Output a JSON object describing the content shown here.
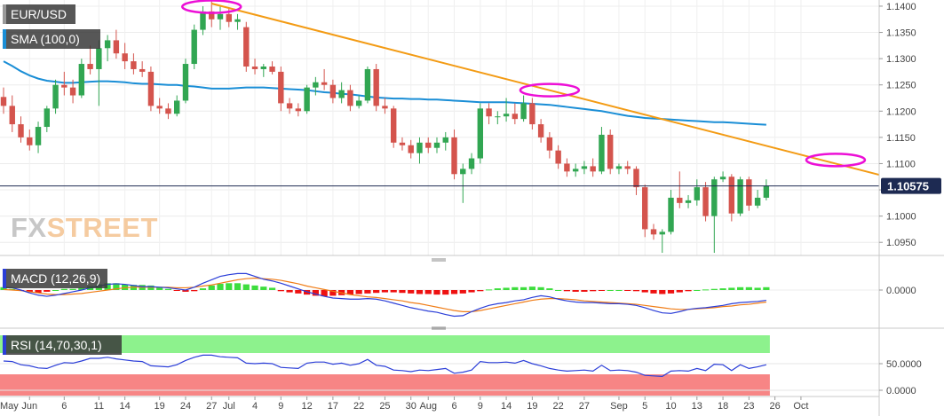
{
  "chart_data": [
    {
      "type": "candlestick",
      "panel": "price",
      "labels": {
        "symbol": "EUR/USD",
        "sma": "SMA (100,0)",
        "current_price": "1.10575",
        "watermark": "FXSTREET"
      },
      "y_ticks": [
        "1.1400",
        "1.1350",
        "1.1300",
        "1.1250",
        "1.1200",
        "1.1150",
        "1.1100",
        "1.1050",
        "1.1000",
        "1.0950"
      ],
      "ylim": [
        1.0925,
        1.1405
      ],
      "current_price_value": 1.10575,
      "candles": [
        [
          1.1227,
          1.1245,
          1.1195,
          1.121
        ],
        [
          1.121,
          1.123,
          1.116,
          1.1175
        ],
        [
          1.1175,
          1.119,
          1.114,
          1.115
        ],
        [
          1.115,
          1.1165,
          1.1125,
          1.1135
        ],
        [
          1.1135,
          1.118,
          1.112,
          1.117
        ],
        [
          1.117,
          1.121,
          1.116,
          1.1205
        ],
        [
          1.1205,
          1.126,
          1.1195,
          1.125
        ],
        [
          1.125,
          1.1275,
          1.123,
          1.1245
        ],
        [
          1.1245,
          1.126,
          1.1215,
          1.123
        ],
        [
          1.123,
          1.13,
          1.1225,
          1.129
        ],
        [
          1.129,
          1.1325,
          1.127,
          1.128
        ],
        [
          1.128,
          1.1335,
          1.121,
          1.132
        ],
        [
          1.132,
          1.1345,
          1.1295,
          1.1335
        ],
        [
          1.1335,
          1.1355,
          1.13,
          1.131
        ],
        [
          1.131,
          1.133,
          1.128,
          1.1295
        ],
        [
          1.1295,
          1.131,
          1.127,
          1.128
        ],
        [
          1.128,
          1.1295,
          1.1265,
          1.1275
        ],
        [
          1.1275,
          1.1285,
          1.12,
          1.121
        ],
        [
          1.121,
          1.1225,
          1.1195,
          1.1205
        ],
        [
          1.1205,
          1.1215,
          1.1185,
          1.1195
        ],
        [
          1.1195,
          1.123,
          1.119,
          1.122
        ],
        [
          1.122,
          1.13,
          1.1215,
          1.129
        ],
        [
          1.129,
          1.1365,
          1.128,
          1.1355
        ],
        [
          1.1355,
          1.14,
          1.1345,
          1.139
        ],
        [
          1.139,
          1.141,
          1.136,
          1.1375
        ],
        [
          1.1375,
          1.14,
          1.1355,
          1.1385
        ],
        [
          1.1385,
          1.1395,
          1.136,
          1.137
        ],
        [
          1.137,
          1.1385,
          1.1355,
          1.1375
        ],
        [
          1.136,
          1.137,
          1.1275,
          1.1285
        ],
        [
          1.1285,
          1.13,
          1.127,
          1.128
        ],
        [
          1.128,
          1.129,
          1.1265,
          1.1285
        ],
        [
          1.1285,
          1.1295,
          1.127,
          1.1275
        ],
        [
          1.1275,
          1.1285,
          1.12,
          1.1215
        ],
        [
          1.1215,
          1.1225,
          1.1195,
          1.1205
        ],
        [
          1.1205,
          1.1215,
          1.119,
          1.12
        ],
        [
          1.12,
          1.125,
          1.1195,
          1.1245
        ],
        [
          1.1245,
          1.1265,
          1.123,
          1.1255
        ],
        [
          1.1255,
          1.128,
          1.124,
          1.125
        ],
        [
          1.125,
          1.126,
          1.1215,
          1.1225
        ],
        [
          1.1225,
          1.1255,
          1.1215,
          1.124
        ],
        [
          1.124,
          1.125,
          1.12,
          1.121
        ],
        [
          1.121,
          1.123,
          1.1205,
          1.122
        ],
        [
          1.122,
          1.1285,
          1.1215,
          1.128
        ],
        [
          1.128,
          1.129,
          1.12,
          1.121
        ],
        [
          1.121,
          1.1225,
          1.1195,
          1.1205
        ],
        [
          1.1205,
          1.121,
          1.113,
          1.114
        ],
        [
          1.114,
          1.115,
          1.1125,
          1.1135
        ],
        [
          1.1135,
          1.1145,
          1.111,
          1.112
        ],
        [
          1.112,
          1.115,
          1.11,
          1.114
        ],
        [
          1.114,
          1.115,
          1.112,
          1.113
        ],
        [
          1.113,
          1.115,
          1.112,
          1.114
        ],
        [
          1.114,
          1.116,
          1.1125,
          1.115
        ],
        [
          1.115,
          1.1165,
          1.107,
          1.108
        ],
        [
          1.108,
          1.11,
          1.1025,
          1.109
        ],
        [
          1.109,
          1.112,
          1.108,
          1.111
        ],
        [
          1.111,
          1.1215,
          1.11,
          1.1205
        ],
        [
          1.1205,
          1.1215,
          1.1175,
          1.119
        ],
        [
          1.119,
          1.12,
          1.1175,
          1.119
        ],
        [
          1.119,
          1.1225,
          1.118,
          1.1195
        ],
        [
          1.1195,
          1.1215,
          1.1175,
          1.1185
        ],
        [
          1.1185,
          1.123,
          1.118,
          1.1215
        ],
        [
          1.1215,
          1.1225,
          1.1165,
          1.1175
        ],
        [
          1.1175,
          1.1185,
          1.114,
          1.115
        ],
        [
          1.115,
          1.116,
          1.111,
          1.1125
        ],
        [
          1.1125,
          1.1135,
          1.109,
          1.11
        ],
        [
          1.11,
          1.111,
          1.1075,
          1.1085
        ],
        [
          1.1085,
          1.11,
          1.1075,
          1.109
        ],
        [
          1.109,
          1.1105,
          1.108,
          1.1095
        ],
        [
          1.1095,
          1.111,
          1.1075,
          1.1085
        ],
        [
          1.1085,
          1.117,
          1.108,
          1.1155
        ],
        [
          1.1155,
          1.1165,
          1.108,
          1.109
        ],
        [
          1.109,
          1.11,
          1.108,
          1.1095
        ],
        [
          1.1095,
          1.1105,
          1.108,
          1.109
        ],
        [
          1.109,
          1.1095,
          1.104,
          1.1055
        ],
        [
          1.1055,
          1.106,
          1.096,
          1.0975
        ],
        [
          1.0975,
          1.0985,
          1.0955,
          1.0965
        ],
        [
          1.0965,
          1.0975,
          1.093,
          1.097
        ],
        [
          1.097,
          1.105,
          1.0965,
          1.1035
        ],
        [
          1.1035,
          1.1085,
          1.1015,
          1.1025
        ],
        [
          1.1025,
          1.104,
          1.1015,
          1.103
        ],
        [
          1.103,
          1.107,
          1.102,
          1.1055
        ],
        [
          1.1055,
          1.1065,
          1.099,
          1.1
        ],
        [
          1.1,
          1.1075,
          1.093,
          1.107
        ],
        [
          1.107,
          1.1085,
          1.1065,
          1.1075
        ],
        [
          1.1075,
          1.108,
          1.099,
          1.1005
        ],
        [
          1.1005,
          1.1075,
          1.1,
          1.107
        ],
        [
          1.107,
          1.1075,
          1.101,
          1.102
        ],
        [
          1.102,
          1.105,
          1.1015,
          1.1035
        ],
        [
          1.1035,
          1.107,
          1.103,
          1.1058
        ]
      ],
      "sma_100": [
        1.1295,
        1.1286,
        1.1276,
        1.1268,
        1.1262,
        1.1258,
        1.1256,
        1.1254,
        1.1254,
        1.1255,
        1.1256,
        1.1257,
        1.1257,
        1.1256,
        1.1255,
        1.1253,
        1.1252,
        1.1252,
        1.1251,
        1.125,
        1.125,
        1.1248,
        1.1247,
        1.1245,
        1.1243,
        1.1243,
        1.1243,
        1.1244,
        1.1245,
        1.1245,
        1.1245,
        1.1244,
        1.1243,
        1.1242,
        1.1241,
        1.124,
        1.1238,
        1.1236,
        1.1235,
        1.1233,
        1.1232,
        1.123,
        1.1228,
        1.1226,
        1.1225,
        1.1224,
        1.1224,
        1.1223,
        1.1223,
        1.1222,
        1.1222,
        1.1221,
        1.122,
        1.1219,
        1.1218,
        1.1217,
        1.1217,
        1.1217,
        1.1217,
        1.1216,
        1.1215,
        1.1214,
        1.1213,
        1.1212,
        1.121,
        1.1208,
        1.1206,
        1.1204,
        1.1202,
        1.12,
        1.1197,
        1.1194,
        1.1191,
        1.1189,
        1.1187,
        1.1186,
        1.1185,
        1.1184,
        1.1183,
        1.1182,
        1.1181,
        1.118,
        1.1179,
        1.1179,
        1.1178,
        1.1177,
        1.1176,
        1.1175,
        1.1174
      ],
      "trendline": {
        "start": {
          "index": 24,
          "price": 1.1405
        },
        "end": {
          "index": 113,
          "price": 1.1028
        }
      },
      "highlights": [
        {
          "index": 24,
          "price": 1.1399
        },
        {
          "index": 63,
          "price": 1.124
        },
        {
          "index": 96,
          "price": 1.1107
        }
      ]
    },
    {
      "type": "macd",
      "panel": "macd",
      "label": "MACD (12,26,9)",
      "y_ticks": [
        "0.0000"
      ],
      "histogram": [
        0.05,
        0.02,
        -0.01,
        -0.04,
        -0.05,
        -0.03,
        0.0,
        0.02,
        0.02,
        0.04,
        0.07,
        0.1,
        0.12,
        0.12,
        0.1,
        0.09,
        0.09,
        0.08,
        0.05,
        0.02,
        -0.01,
        -0.03,
        -0.02,
        0.03,
        0.08,
        0.11,
        0.12,
        0.12,
        0.1,
        0.08,
        0.06,
        0.04,
        -0.02,
        -0.04,
        -0.06,
        -0.08,
        -0.1,
        -0.11,
        -0.1,
        -0.09,
        -0.08,
        -0.07,
        -0.06,
        -0.05,
        -0.04,
        -0.04,
        -0.05,
        -0.06,
        -0.07,
        -0.07,
        -0.08,
        -0.08,
        -0.07,
        -0.06,
        -0.04,
        -0.02,
        0.01,
        0.03,
        0.04,
        0.05,
        0.05,
        0.06,
        0.05,
        0.03,
        0.0,
        -0.02,
        -0.03,
        -0.03,
        -0.02,
        -0.01,
        0.0,
        0.0,
        -0.01,
        -0.02,
        -0.04,
        -0.06,
        -0.07,
        -0.06,
        -0.04,
        -0.02,
        0.0,
        0.01,
        0.02,
        0.03,
        0.04,
        0.05,
        0.05,
        0.04,
        0.05
      ],
      "macd_line": [
        0.05,
        0.04,
        0.0,
        -0.05,
        -0.09,
        -0.11,
        -0.09,
        -0.06,
        -0.03,
        0.0,
        0.04,
        0.07,
        0.1,
        0.11,
        0.1,
        0.08,
        0.06,
        0.06,
        0.05,
        0.04,
        0.02,
        0.0,
        0.05,
        0.12,
        0.18,
        0.24,
        0.27,
        0.29,
        0.29,
        0.24,
        0.19,
        0.16,
        0.12,
        0.07,
        0.02,
        -0.03,
        -0.07,
        -0.11,
        -0.14,
        -0.15,
        -0.16,
        -0.16,
        -0.15,
        -0.16,
        -0.19,
        -0.23,
        -0.27,
        -0.31,
        -0.34,
        -0.37,
        -0.39,
        -0.43,
        -0.46,
        -0.45,
        -0.38,
        -0.32,
        -0.27,
        -0.24,
        -0.22,
        -0.19,
        -0.17,
        -0.13,
        -0.1,
        -0.12,
        -0.16,
        -0.19,
        -0.21,
        -0.22,
        -0.22,
        -0.23,
        -0.24,
        -0.24,
        -0.25,
        -0.27,
        -0.31,
        -0.36,
        -0.4,
        -0.41,
        -0.38,
        -0.34,
        -0.32,
        -0.31,
        -0.29,
        -0.27,
        -0.24,
        -0.22,
        -0.21,
        -0.2,
        -0.18
      ],
      "signal_line": [
        0.01,
        0.0,
        -0.01,
        -0.03,
        -0.05,
        -0.07,
        -0.08,
        -0.08,
        -0.07,
        -0.06,
        -0.04,
        -0.02,
        0.0,
        0.02,
        0.04,
        0.05,
        0.05,
        0.05,
        0.05,
        0.05,
        0.04,
        0.04,
        0.05,
        0.07,
        0.09,
        0.12,
        0.15,
        0.18,
        0.2,
        0.21,
        0.2,
        0.19,
        0.17,
        0.14,
        0.11,
        0.07,
        0.04,
        0.01,
        -0.02,
        -0.05,
        -0.08,
        -0.1,
        -0.12,
        -0.13,
        -0.15,
        -0.17,
        -0.19,
        -0.22,
        -0.24,
        -0.27,
        -0.3,
        -0.33,
        -0.36,
        -0.38,
        -0.38,
        -0.36,
        -0.33,
        -0.3,
        -0.27,
        -0.24,
        -0.21,
        -0.18,
        -0.16,
        -0.15,
        -0.15,
        -0.16,
        -0.17,
        -0.19,
        -0.2,
        -0.21,
        -0.22,
        -0.23,
        -0.24,
        -0.25,
        -0.27,
        -0.29,
        -0.31,
        -0.33,
        -0.34,
        -0.34,
        -0.33,
        -0.32,
        -0.31,
        -0.29,
        -0.28,
        -0.26,
        -0.25,
        -0.23,
        -0.21
      ]
    },
    {
      "type": "line",
      "panel": "rsi",
      "label": "RSI (14,70,30,1)",
      "y_ticks": [
        "50.0000",
        "0.0000"
      ],
      "ylim": [
        0,
        100
      ],
      "bands": {
        "upper": 70,
        "lower": 30
      },
      "values": [
        55,
        54,
        48,
        46,
        42,
        41,
        47,
        52,
        51,
        55,
        60,
        60,
        62,
        59,
        57,
        55,
        54,
        46,
        45,
        44,
        48,
        56,
        62,
        66,
        66,
        63,
        62,
        61,
        51,
        50,
        51,
        50,
        43,
        42,
        41,
        51,
        53,
        53,
        49,
        51,
        47,
        50,
        58,
        47,
        45,
        38,
        37,
        35,
        38,
        37,
        39,
        41,
        32,
        34,
        38,
        54,
        52,
        52,
        53,
        51,
        56,
        50,
        46,
        41,
        38,
        36,
        37,
        38,
        36,
        47,
        37,
        38,
        37,
        34,
        28,
        27,
        26,
        36,
        37,
        36,
        41,
        37,
        49,
        48,
        37,
        48,
        41,
        44,
        48
      ]
    },
    {
      "type": "axis",
      "panel": "x",
      "ticks": [
        {
          "label": "May",
          "index": -1
        },
        {
          "label": "Jun",
          "index": 3
        },
        {
          "label": "6",
          "index": 7
        },
        {
          "label": "11",
          "index": 11
        },
        {
          "label": "14",
          "index": 14
        },
        {
          "label": "19",
          "index": 18
        },
        {
          "label": "24",
          "index": 21
        },
        {
          "label": "27",
          "index": 24
        },
        {
          "label": "Jul",
          "index": 26
        },
        {
          "label": "4",
          "index": 29
        },
        {
          "label": "9",
          "index": 32
        },
        {
          "label": "12",
          "index": 35
        },
        {
          "label": "17",
          "index": 38
        },
        {
          "label": "22",
          "index": 41
        },
        {
          "label": "25",
          "index": 44
        },
        {
          "label": "30",
          "index": 47
        },
        {
          "label": "Aug",
          "index": 49
        },
        {
          "label": "6",
          "index": 52
        },
        {
          "label": "9",
          "index": 55
        },
        {
          "label": "14",
          "index": 58
        },
        {
          "label": "19",
          "index": 61
        },
        {
          "label": "22",
          "index": 64
        },
        {
          "label": "27",
          "index": 67
        },
        {
          "label": "Sep",
          "index": 71
        },
        {
          "label": "5",
          "index": 74
        },
        {
          "label": "10",
          "index": 77
        },
        {
          "label": "13",
          "index": 80
        },
        {
          "label": "18",
          "index": 83
        },
        {
          "label": "23",
          "index": 86
        },
        {
          "label": "26",
          "index": 89
        },
        {
          "label": "Oct",
          "index": 92
        }
      ]
    }
  ],
  "colors": {
    "up": "#31a652",
    "down": "#d4544d",
    "sma": "#1a8ed6",
    "trendline": "#f39b14",
    "highlight": "#ec0fd6",
    "macd_pos": "#3ddd3d",
    "macd_neg": "#ee1111",
    "macd_line": "#2b3ed8",
    "signal_line": "#f07d17",
    "rsi_line": "#2b3ed8",
    "rsi_upper_band": "#8df28d",
    "rsi_lower_band": "#f78585",
    "price_label_bg": "#1d2a52",
    "watermark": "#c7c7c7",
    "watermark_accent": "#f5cba0"
  }
}
